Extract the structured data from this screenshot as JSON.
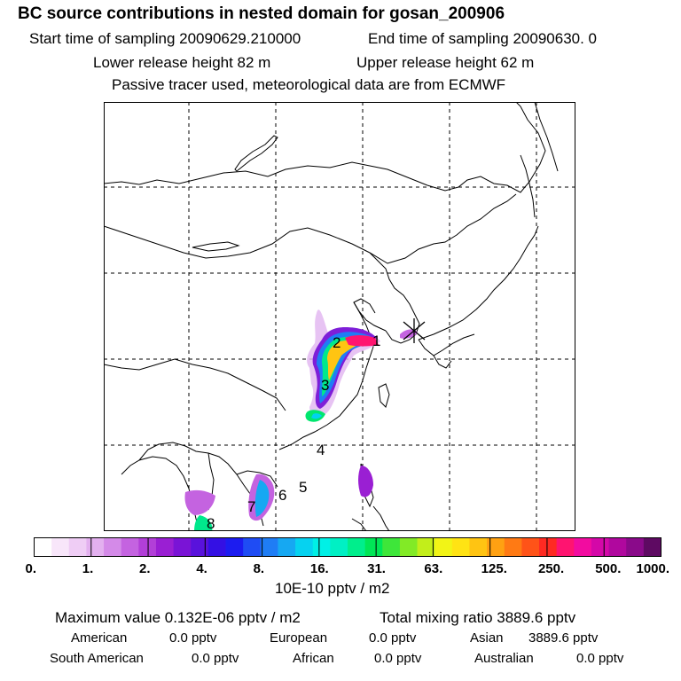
{
  "header": {
    "title": "BC  source contributions in nested domain for gosan_200906",
    "start_label": "Start time of sampling 20090629.210000",
    "end_label": "End time of sampling 20090630.     0",
    "lower_label": "Lower release height   82 m",
    "upper_label": "Upper release height   62 m",
    "tracer_note": "Passive tracer used, meteorological data are from ECMWF"
  },
  "chart_data": {
    "type": "heatmap",
    "title": "BC  source contributions in nested domain for gosan_200906",
    "colorbar": {
      "tick_labels": [
        "0.",
        "1.",
        "2.",
        "4.",
        "8.",
        "16.",
        "31.",
        "63.",
        "125.",
        "250.",
        "500.",
        "1000."
      ],
      "colors": [
        "#ffffff",
        "#f8e6fa",
        "#efcdf5",
        "#e3b0ef",
        "#d48ae8",
        "#c463e0",
        "#b23fd8",
        "#9a1fd3",
        "#7a14d6",
        "#5912dc",
        "#3410e4",
        "#1c1cf0",
        "#1f4cf4",
        "#1f7df5",
        "#16a8f2",
        "#06d2f0",
        "#00f0e6",
        "#00f0c4",
        "#00ee8c",
        "#00e656",
        "#3ee63a",
        "#82ea26",
        "#c2ee1a",
        "#f2f416",
        "#ffe314",
        "#ffc412",
        "#ffa112",
        "#ff7a14",
        "#ff5318",
        "#ff2a22",
        "#ff1470",
        "#f20ca0",
        "#d408a8",
        "#b0089e",
        "#8a0a8a",
        "#5e0a62"
      ],
      "units": "10E-10 pptv / m2"
    },
    "labels": [
      "1",
      "2",
      "3",
      "4",
      "5",
      "6",
      "7",
      "8"
    ],
    "receptor": "gosan"
  },
  "summary": {
    "max_label": "Maximum value  0.132E-06 pptv / m2",
    "total_label": "Total mixing ratio      3889.6 pptv",
    "regions": [
      {
        "name": "American",
        "value": "0.0 pptv"
      },
      {
        "name": "European",
        "value": "0.0 pptv"
      },
      {
        "name": "Asian",
        "value": "3889.6 pptv"
      },
      {
        "name": "South American",
        "value": "0.0 pptv"
      },
      {
        "name": "African",
        "value": "0.0 pptv"
      },
      {
        "name": "Australian",
        "value": "0.0 pptv"
      }
    ]
  }
}
